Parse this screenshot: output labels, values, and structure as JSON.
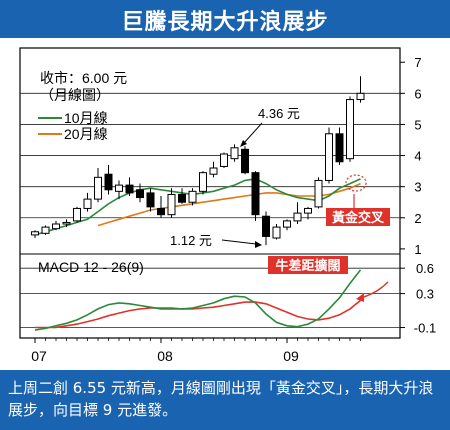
{
  "header": {
    "title": "巨騰長期大升浪展步"
  },
  "caption": {
    "text": "上周二創 6.55 元新高，月線圖剛出現「黃金交叉」，長期大升浪展步，向目標 9 元進發。"
  },
  "chart_data": {
    "type": "candlestick",
    "info_line1": "收市：6.00 元",
    "info_line2": "（月線圖）",
    "price_axis": {
      "ylim": [
        0.9,
        7.2
      ],
      "ticks": [
        1,
        2,
        3,
        4,
        5,
        6,
        7
      ]
    },
    "macd_axis": {
      "ylim": [
        -0.2,
        0.72
      ],
      "ticks": [
        0.6,
        0.3,
        -0.1
      ]
    },
    "x_ticks": [
      {
        "label": "07",
        "index": 0
      },
      {
        "label": "08",
        "index": 12
      },
      {
        "label": "09",
        "index": 24
      }
    ],
    "legend": [
      {
        "name": "10月線",
        "color": "#2a8a3a"
      },
      {
        "name": "20月線",
        "color": "#e07818"
      }
    ],
    "candles": [
      {
        "o": 1.45,
        "h": 1.6,
        "l": 1.35,
        "c": 1.55
      },
      {
        "o": 1.5,
        "h": 1.75,
        "l": 1.45,
        "c": 1.7
      },
      {
        "o": 1.65,
        "h": 1.9,
        "l": 1.6,
        "c": 1.8
      },
      {
        "o": 1.8,
        "h": 1.95,
        "l": 1.7,
        "c": 1.85
      },
      {
        "o": 1.9,
        "h": 2.35,
        "l": 1.85,
        "c": 2.3
      },
      {
        "o": 2.3,
        "h": 2.8,
        "l": 2.2,
        "c": 2.6
      },
      {
        "o": 2.6,
        "h": 3.6,
        "l": 2.5,
        "c": 3.3
      },
      {
        "o": 3.4,
        "h": 3.7,
        "l": 2.75,
        "c": 2.9
      },
      {
        "o": 2.85,
        "h": 3.2,
        "l": 2.6,
        "c": 3.05
      },
      {
        "o": 3.05,
        "h": 3.3,
        "l": 2.7,
        "c": 2.8
      },
      {
        "o": 2.9,
        "h": 3.1,
        "l": 2.5,
        "c": 2.65
      },
      {
        "o": 2.8,
        "h": 2.95,
        "l": 2.2,
        "c": 2.35
      },
      {
        "o": 2.3,
        "h": 2.7,
        "l": 2.0,
        "c": 2.1
      },
      {
        "o": 2.1,
        "h": 2.95,
        "l": 2.0,
        "c": 2.75
      },
      {
        "o": 2.75,
        "h": 2.95,
        "l": 2.45,
        "c": 2.5
      },
      {
        "o": 2.5,
        "h": 2.95,
        "l": 2.4,
        "c": 2.85
      },
      {
        "o": 2.85,
        "h": 3.5,
        "l": 2.75,
        "c": 3.45
      },
      {
        "o": 3.4,
        "h": 3.8,
        "l": 3.3,
        "c": 3.6
      },
      {
        "o": 3.65,
        "h": 4.1,
        "l": 3.6,
        "c": 4.05
      },
      {
        "o": 3.9,
        "h": 4.36,
        "l": 3.8,
        "c": 4.25
      },
      {
        "o": 4.2,
        "h": 4.3,
        "l": 3.4,
        "c": 3.45
      },
      {
        "o": 3.45,
        "h": 3.5,
        "l": 1.9,
        "c": 2.1
      },
      {
        "o": 2.05,
        "h": 2.2,
        "l": 1.12,
        "c": 1.4
      },
      {
        "o": 1.35,
        "h": 1.8,
        "l": 1.3,
        "c": 1.7
      },
      {
        "o": 1.7,
        "h": 1.95,
        "l": 1.6,
        "c": 1.9
      },
      {
        "o": 1.9,
        "h": 2.5,
        "l": 1.8,
        "c": 2.15
      },
      {
        "o": 2.15,
        "h": 2.35,
        "l": 1.95,
        "c": 2.3
      },
      {
        "o": 2.35,
        "h": 3.3,
        "l": 2.3,
        "c": 3.2
      },
      {
        "o": 3.2,
        "h": 4.9,
        "l": 3.1,
        "c": 4.7
      },
      {
        "o": 4.7,
        "h": 4.9,
        "l": 3.7,
        "c": 3.8
      },
      {
        "o": 3.9,
        "h": 5.9,
        "l": 3.8,
        "c": 5.8
      },
      {
        "o": 5.8,
        "h": 6.55,
        "l": 5.7,
        "c": 6.0
      }
    ],
    "ma10": [
      1.45,
      1.55,
      1.65,
      1.75,
      1.85,
      1.95,
      2.2,
      2.45,
      2.65,
      2.8,
      2.9,
      2.95,
      2.9,
      2.85,
      2.8,
      2.75,
      2.8,
      2.85,
      2.95,
      3.05,
      3.2,
      3.25,
      3.1,
      2.9,
      2.75,
      2.65,
      2.6,
      2.55,
      2.7,
      2.95,
      3.1,
      3.25
    ],
    "ma20": [
      null,
      null,
      null,
      null,
      null,
      null,
      1.75,
      1.85,
      1.95,
      2.05,
      2.15,
      2.25,
      2.3,
      2.35,
      2.4,
      2.45,
      2.5,
      2.55,
      2.6,
      2.65,
      2.7,
      2.75,
      2.8,
      2.8,
      2.75,
      2.7,
      2.7,
      2.7,
      2.75,
      2.85,
      2.95,
      3.1
    ],
    "macd_diff": [
      -0.13,
      -0.11,
      -0.08,
      -0.05,
      -0.01,
      0.05,
      0.12,
      0.17,
      0.19,
      0.18,
      0.16,
      0.14,
      0.12,
      0.12,
      0.12,
      0.13,
      0.16,
      0.19,
      0.24,
      0.27,
      0.26,
      0.19,
      0.06,
      -0.04,
      -0.08,
      -0.09,
      -0.06,
      0.0,
      0.12,
      0.25,
      0.42,
      0.58
    ],
    "macd_signal": [
      -0.1,
      -0.1,
      -0.1,
      -0.08,
      -0.06,
      -0.03,
      0.0,
      0.04,
      0.07,
      0.1,
      0.12,
      0.13,
      0.13,
      0.13,
      0.12,
      0.12,
      0.13,
      0.14,
      0.16,
      0.18,
      0.2,
      0.2,
      0.18,
      0.13,
      0.08,
      0.03,
      0.0,
      -0.01,
      0.01,
      0.05,
      0.12,
      0.22
    ],
    "macd_label": "MACD 12 - 26(9)",
    "annotations": {
      "high": "4.36 元",
      "low": "1.12 元",
      "golden_cross": "黃金交叉",
      "macd_widen": "牛差距擴闊"
    }
  }
}
